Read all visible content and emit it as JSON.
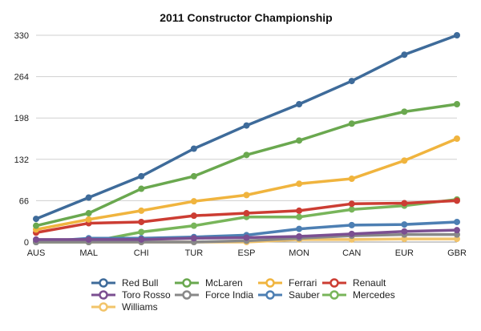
{
  "chart_data": {
    "type": "line",
    "title": "2011 Constructor Championship",
    "xlabel": "",
    "ylabel": "",
    "categories": [
      "AUS",
      "MAL",
      "CHI",
      "TUR",
      "ESP",
      "MON",
      "CAN",
      "EUR",
      "GBR"
    ],
    "y_ticks": [
      0,
      66,
      132,
      198,
      264,
      330
    ],
    "ylim": [
      0,
      330
    ],
    "grid": "horizontal",
    "legend_position": "bottom",
    "series": [
      {
        "name": "Red Bull",
        "color": "#3e6b9a",
        "values": [
          37,
          71,
          105,
          149,
          186,
          220,
          257,
          299,
          330
        ]
      },
      {
        "name": "McLaren",
        "color": "#6aa84f",
        "values": [
          26,
          46,
          85,
          105,
          139,
          162,
          189,
          208,
          220
        ]
      },
      {
        "name": "Ferrari",
        "color": "#f0b43e",
        "values": [
          20,
          36,
          50,
          65,
          75,
          93,
          101,
          130,
          165
        ]
      },
      {
        "name": "Renault",
        "color": "#cc3d33",
        "values": [
          15,
          30,
          32,
          42,
          46,
          50,
          61,
          62,
          66
        ]
      },
      {
        "name": "Toro Rosso",
        "color": "#7b4f91",
        "values": [
          4,
          4,
          4,
          6,
          7,
          9,
          13,
          17,
          19
        ]
      },
      {
        "name": "Force India",
        "color": "#888888",
        "values": [
          0,
          0,
          0,
          0,
          2,
          6,
          10,
          12,
          12
        ]
      },
      {
        "name": "Sauber",
        "color": "#4d7fb3",
        "values": [
          0,
          6,
          6,
          8,
          11,
          21,
          27,
          28,
          32
        ]
      },
      {
        "name": "Mercedes",
        "color": "#78b55a",
        "values": [
          0,
          0,
          16,
          26,
          40,
          40,
          52,
          58,
          68
        ]
      },
      {
        "name": "Williams",
        "color": "#f2c46a",
        "values": [
          0,
          0,
          0,
          0,
          0,
          4,
          4,
          5,
          5
        ]
      }
    ]
  }
}
